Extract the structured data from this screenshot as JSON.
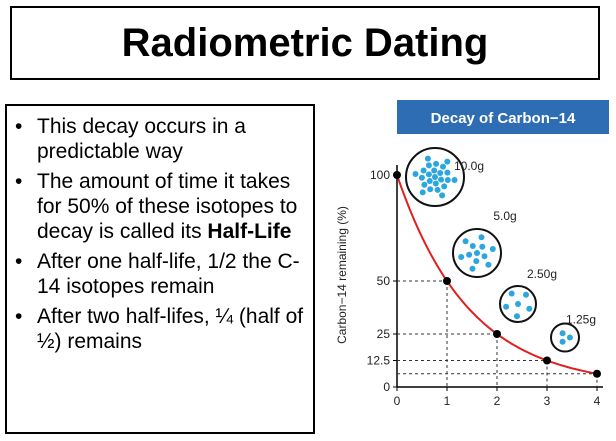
{
  "slide": {
    "title": "Radiometric Dating",
    "bullet_glyph": "•",
    "bullets": [
      {
        "text": "This decay occurs in a predictable way"
      },
      {
        "text": "The amount of time it takes for 50% of these isotopes to decay is called its ",
        "bold": "Half-Life"
      },
      {
        "text": "After one half-life, 1/2 the C-14 isotopes remain"
      },
      {
        "text": "After two half-lifes, ¼ (half of ½) remains"
      }
    ]
  },
  "chart_data": {
    "type": "line",
    "title": "Decay of Carbon−14",
    "xlabel": "",
    "ylabel": "Carbon−14 remaining (%)",
    "x": [
      0,
      1,
      2,
      3,
      4
    ],
    "y": [
      100,
      50,
      25,
      12.5,
      6.25
    ],
    "x_ticks": [
      "0",
      "1",
      "2",
      "3",
      "4"
    ],
    "y_ticks": [
      {
        "value": 100,
        "label": "100"
      },
      {
        "value": 50,
        "label": "50"
      },
      {
        "value": 25,
        "label": "25"
      },
      {
        "value": 12.5,
        "label": "12.5"
      },
      {
        "value": 0,
        "label": "0"
      }
    ],
    "xlim": [
      0,
      4
    ],
    "ylim": [
      0,
      100
    ],
    "annotations": [
      {
        "x": 0,
        "mass_label": "10.0g",
        "atoms": 24
      },
      {
        "x": 1,
        "mass_label": "5.0g",
        "atoms": 12
      },
      {
        "x": 2,
        "mass_label": "2.50g",
        "atoms": 6
      },
      {
        "x": 3,
        "mass_label": "1.25g",
        "atoms": 3
      }
    ],
    "colors": {
      "header_bg": "#2e6db4",
      "curve": "#e0201f",
      "atom": "#2ba6de",
      "point": "#000000"
    },
    "grid": false
  }
}
